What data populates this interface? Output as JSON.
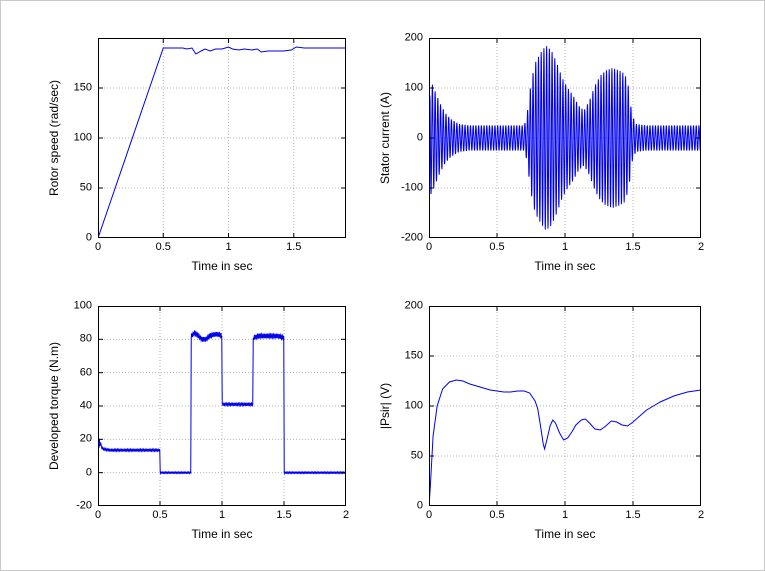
{
  "figure": {
    "background": "#ffffff",
    "line_color": "#0000ee",
    "grid_color": "#b4b4b4",
    "axis_color": "#000000"
  },
  "chart_data": [
    {
      "type": "line",
      "title": "",
      "xlabel": "Time in sec",
      "ylabel": "Rotor speed (rad/sec)",
      "xlim": [
        0,
        1.9
      ],
      "ylim": [
        0,
        200
      ],
      "xticks": [
        0,
        0.5,
        1,
        1.5
      ],
      "yticks": [
        0,
        50,
        100,
        150
      ],
      "grid": true,
      "legend": "none",
      "series": [
        {
          "name": "rotor-speed",
          "points": [
            [
              0,
              0
            ],
            [
              0.5,
              190
            ],
            [
              0.55,
              190
            ],
            [
              0.6,
              190
            ],
            [
              0.65,
              190
            ],
            [
              0.68,
              189
            ],
            [
              0.72,
              190
            ],
            [
              0.75,
              184
            ],
            [
              0.79,
              187
            ],
            [
              0.82,
              189
            ],
            [
              0.86,
              187
            ],
            [
              0.9,
              189
            ],
            [
              0.95,
              189
            ],
            [
              1.0,
              191
            ],
            [
              1.03,
              189
            ],
            [
              1.08,
              188
            ],
            [
              1.12,
              189
            ],
            [
              1.18,
              188
            ],
            [
              1.22,
              189
            ],
            [
              1.25,
              186
            ],
            [
              1.3,
              187
            ],
            [
              1.35,
              187
            ],
            [
              1.42,
              187
            ],
            [
              1.48,
              188
            ],
            [
              1.52,
              191
            ],
            [
              1.58,
              190
            ],
            [
              1.7,
              190
            ],
            [
              1.9,
              190
            ]
          ]
        }
      ]
    },
    {
      "type": "line",
      "title": "",
      "xlabel": "Time in sec",
      "ylabel": "Stator current (A)",
      "xlim": [
        0,
        2
      ],
      "ylim": [
        -200,
        200
      ],
      "xticks": [
        0,
        0.5,
        1,
        1.5,
        2
      ],
      "yticks": [
        -200,
        -100,
        0,
        100,
        200
      ],
      "grid": true,
      "legend": "none",
      "series": [
        {
          "name": "stator-current",
          "waveform": {
            "type": "sine-envelope",
            "frequency": 50,
            "samples": 1600,
            "envelope": [
              [
                0,
                10
              ],
              [
                0.008,
                115
              ],
              [
                0.02,
                110
              ],
              [
                0.05,
                90
              ],
              [
                0.08,
                70
              ],
              [
                0.12,
                50
              ],
              [
                0.16,
                38
              ],
              [
                0.22,
                28
              ],
              [
                0.3,
                25
              ],
              [
                0.5,
                25
              ],
              [
                0.7,
                25
              ],
              [
                0.72,
                45
              ],
              [
                0.75,
                110
              ],
              [
                0.78,
                150
              ],
              [
                0.82,
                170
              ],
              [
                0.86,
                185
              ],
              [
                0.9,
                175
              ],
              [
                0.94,
                150
              ],
              [
                0.98,
                120
              ],
              [
                1.02,
                100
              ],
              [
                1.06,
                85
              ],
              [
                1.1,
                65
              ],
              [
                1.14,
                55
              ],
              [
                1.18,
                75
              ],
              [
                1.22,
                105
              ],
              [
                1.26,
                125
              ],
              [
                1.3,
                135
              ],
              [
                1.35,
                140
              ],
              [
                1.4,
                135
              ],
              [
                1.44,
                128
              ],
              [
                1.47,
                100
              ],
              [
                1.49,
                50
              ],
              [
                1.52,
                28
              ],
              [
                1.6,
                25
              ],
              [
                2,
                25
              ]
            ]
          }
        }
      ]
    },
    {
      "type": "line",
      "title": "",
      "xlabel": "Time in sec",
      "ylabel": "Developed torque (N.m)",
      "xlim": [
        0,
        2
      ],
      "ylim": [
        -20,
        100
      ],
      "xticks": [
        0,
        0.5,
        1,
        1.5,
        2
      ],
      "yticks": [
        -20,
        0,
        20,
        40,
        60,
        80,
        100
      ],
      "grid": true,
      "legend": "none",
      "series": [
        {
          "name": "developed-torque",
          "samples": 1000,
          "points": [
            [
              0,
              0
            ],
            [
              0.004,
              22
            ],
            [
              0.008,
              15
            ],
            [
              0.012,
              20
            ],
            [
              0.016,
              16
            ],
            [
              0.022,
              18
            ],
            [
              0.03,
              15
            ],
            [
              0.05,
              14
            ],
            [
              0.1,
              13.5
            ],
            [
              0.2,
              13.5
            ],
            [
              0.35,
              13.5
            ],
            [
              0.498,
              13.5
            ],
            [
              0.502,
              0
            ],
            [
              0.748,
              0
            ],
            [
              0.752,
              82
            ],
            [
              0.78,
              84
            ],
            [
              0.81,
              82
            ],
            [
              0.84,
              80
            ],
            [
              0.87,
              80
            ],
            [
              0.9,
              82
            ],
            [
              0.94,
              83
            ],
            [
              0.97,
              83
            ],
            [
              0.998,
              82
            ],
            [
              1.002,
              41
            ],
            [
              1.1,
              41
            ],
            [
              1.2,
              41
            ],
            [
              1.248,
              41
            ],
            [
              1.252,
              81
            ],
            [
              1.3,
              82
            ],
            [
              1.35,
              82
            ],
            [
              1.4,
              82
            ],
            [
              1.45,
              82
            ],
            [
              1.498,
              81
            ],
            [
              1.502,
              0
            ],
            [
              1.7,
              0
            ],
            [
              2,
              0
            ]
          ],
          "ripple": [
            {
              "from": 0.03,
              "to": 0.497,
              "amplitude": 0.7,
              "frequency": 85
            },
            {
              "from": 0.503,
              "to": 0.747,
              "amplitude": 0.5,
              "frequency": 85
            },
            {
              "from": 0.752,
              "to": 0.997,
              "amplitude": 1.4,
              "frequency": 85
            },
            {
              "from": 1.003,
              "to": 1.247,
              "amplitude": 0.8,
              "frequency": 85
            },
            {
              "from": 1.253,
              "to": 1.497,
              "amplitude": 1.4,
              "frequency": 85
            },
            {
              "from": 1.503,
              "to": 2,
              "amplitude": 0.5,
              "frequency": 85
            }
          ]
        }
      ]
    },
    {
      "type": "line",
      "title": "",
      "xlabel": "Time in sec",
      "ylabel": "|Psir| (V)",
      "xlim": [
        0,
        2
      ],
      "ylim": [
        0,
        200
      ],
      "xticks": [
        0,
        0.5,
        1,
        1.5,
        2
      ],
      "yticks": [
        0,
        50,
        100,
        150,
        200
      ],
      "grid": true,
      "legend": "none",
      "series": [
        {
          "name": "rotor-flux-magnitude",
          "points": [
            [
              0,
              0
            ],
            [
              0.01,
              20
            ],
            [
              0.03,
              70
            ],
            [
              0.06,
              100
            ],
            [
              0.1,
              117
            ],
            [
              0.15,
              124
            ],
            [
              0.2,
              126
            ],
            [
              0.25,
              125
            ],
            [
              0.3,
              122
            ],
            [
              0.35,
              120
            ],
            [
              0.4,
              118
            ],
            [
              0.45,
              116
            ],
            [
              0.5,
              115
            ],
            [
              0.55,
              114
            ],
            [
              0.6,
              114
            ],
            [
              0.65,
              115
            ],
            [
              0.7,
              115
            ],
            [
              0.74,
              113
            ],
            [
              0.78,
              105
            ],
            [
              0.8,
              97
            ],
            [
              0.82,
              80
            ],
            [
              0.84,
              62
            ],
            [
              0.85,
              57
            ],
            [
              0.87,
              68
            ],
            [
              0.89,
              80
            ],
            [
              0.91,
              86
            ],
            [
              0.93,
              83
            ],
            [
              0.96,
              73
            ],
            [
              0.99,
              66
            ],
            [
              1.02,
              68
            ],
            [
              1.05,
              74
            ],
            [
              1.08,
              81
            ],
            [
              1.12,
              86
            ],
            [
              1.15,
              87
            ],
            [
              1.18,
              83
            ],
            [
              1.22,
              77
            ],
            [
              1.26,
              76
            ],
            [
              1.3,
              80
            ],
            [
              1.34,
              85
            ],
            [
              1.38,
              84
            ],
            [
              1.42,
              81
            ],
            [
              1.46,
              80
            ],
            [
              1.5,
              84
            ],
            [
              1.55,
              90
            ],
            [
              1.6,
              96
            ],
            [
              1.65,
              100
            ],
            [
              1.7,
              104
            ],
            [
              1.75,
              107
            ],
            [
              1.8,
              110
            ],
            [
              1.85,
              112
            ],
            [
              1.9,
              114
            ],
            [
              1.95,
              115
            ],
            [
              2,
              116
            ]
          ]
        }
      ]
    }
  ]
}
